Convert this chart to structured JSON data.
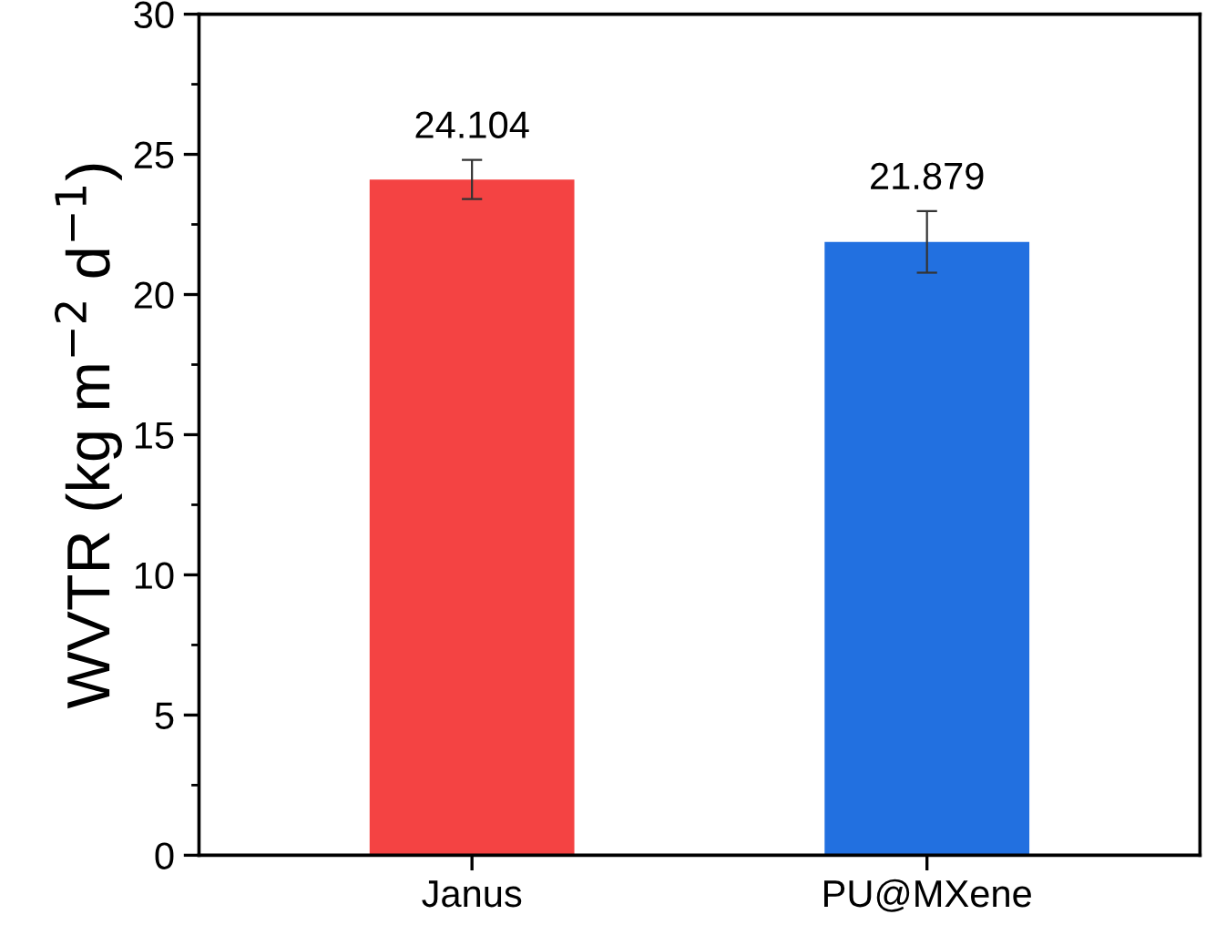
{
  "chart_data": {
    "type": "bar",
    "ylabel": "WVTR (kg m$^{−2}$ d$^{−1}$)",
    "categories": [
      "Janus",
      "PU@MXene"
    ],
    "values": [
      24.104,
      21.879
    ],
    "colors": [
      "#f44343",
      "#2270e0"
    ],
    "errors": [
      0.7,
      1.1
    ],
    "ylim": [
      0,
      30
    ],
    "yticks": [
      0,
      5,
      10,
      15,
      20,
      25,
      30
    ],
    "data_labels": true,
    "grid": false
  }
}
